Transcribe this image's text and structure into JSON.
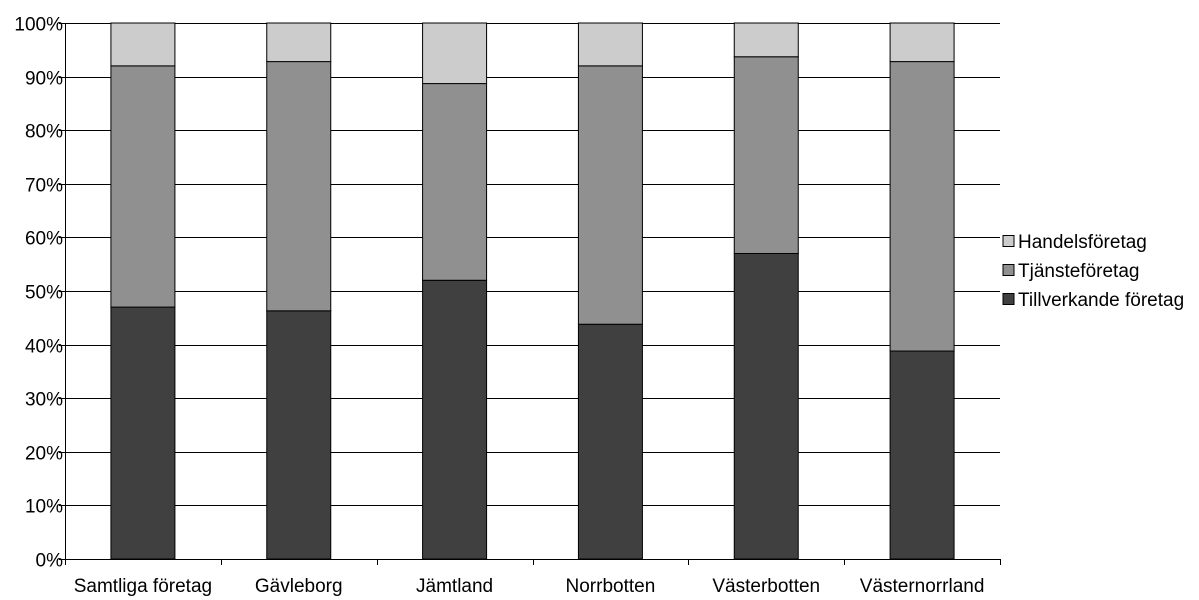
{
  "chart_data": {
    "type": "bar",
    "stacked": true,
    "percent": true,
    "categories": [
      "Samtliga företag",
      "Gävleborg",
      "Jämtland",
      "Norrbotten",
      "Västerbotten",
      "Västernorrland"
    ],
    "series": [
      {
        "name": "Tillverkande företag",
        "values": [
          47,
          46.3,
          52,
          43.8,
          57,
          38.8
        ],
        "color": "#404040"
      },
      {
        "name": "Tjänsteföretag",
        "values": [
          45,
          46.5,
          36.7,
          48.2,
          36.7,
          54
        ],
        "color": "#909090"
      },
      {
        "name": "Handelsföretag",
        "values": [
          8,
          7.2,
          11.3,
          8,
          6.3,
          7.2
        ],
        "color": "#cccccc"
      }
    ],
    "legend_order": [
      "Handelsföretag",
      "Tjänsteföretag",
      "Tillverkande företag"
    ],
    "ylim": [
      0,
      100
    ],
    "yticks": [
      "0%",
      "10%",
      "20%",
      "30%",
      "40%",
      "50%",
      "60%",
      "70%",
      "80%",
      "90%",
      "100%"
    ],
    "grid": true,
    "legend_position": "right"
  }
}
